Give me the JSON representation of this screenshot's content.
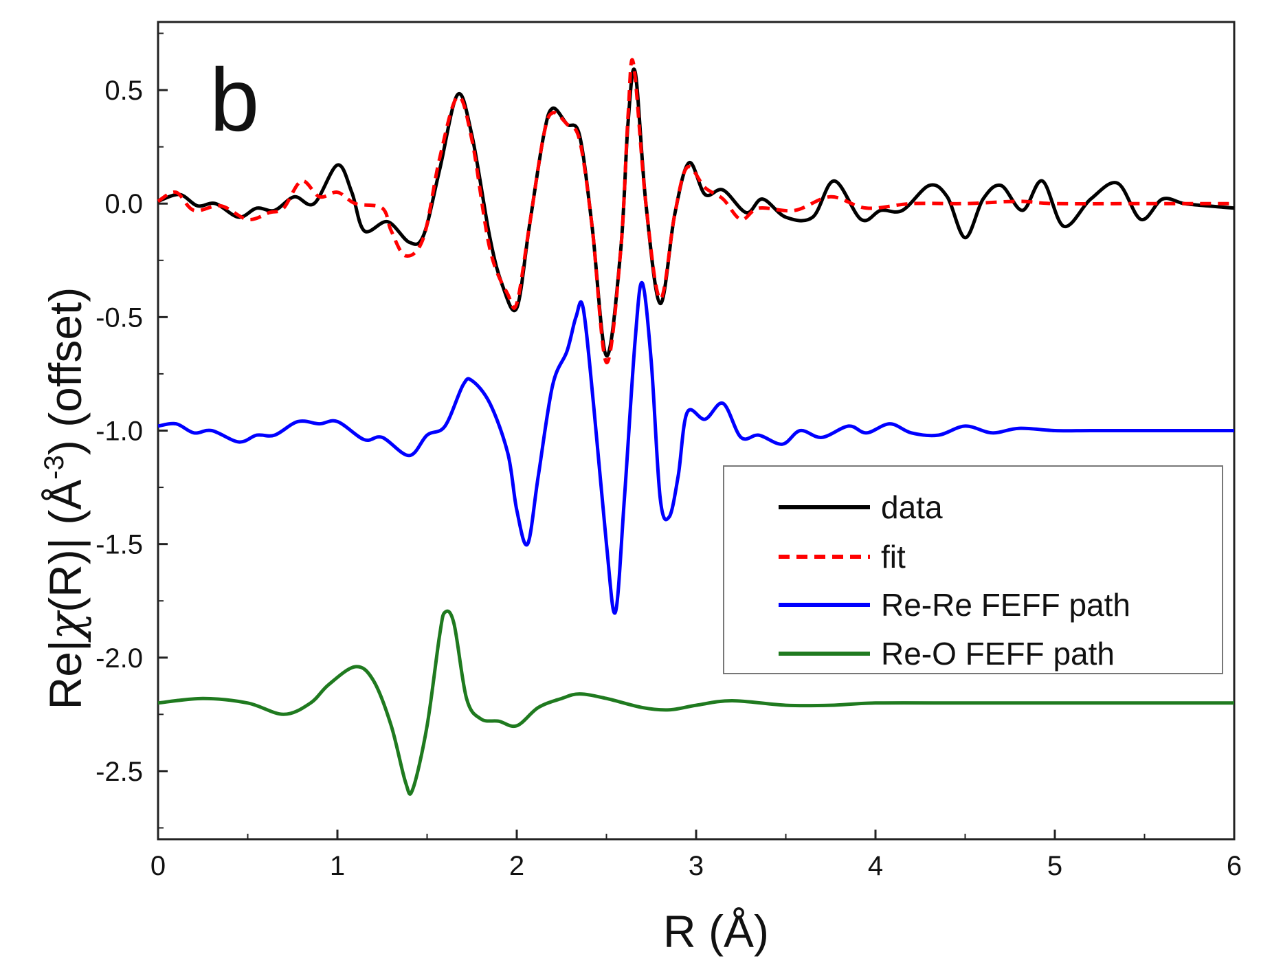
{
  "chart_data": {
    "type": "line",
    "panel_label": "b",
    "xlabel": "R (Å)",
    "ylabel_parts": {
      "pre": "Re|",
      "chi": "χ",
      "mid": "(R)| (",
      "unit": "Å",
      "exp": "-3",
      "post": ") (offset)"
    },
    "xlim": [
      0,
      6
    ],
    "ylim": [
      -2.8,
      0.8
    ],
    "x_ticks": [
      "0",
      "1",
      "2",
      "3",
      "4",
      "5",
      "6"
    ],
    "y_ticks": [
      "0.5",
      "0.0",
      "-0.5",
      "-1.0",
      "-1.5",
      "-2.0",
      "-2.5"
    ],
    "legend": {
      "position": "center-right",
      "entries": [
        "data",
        "fit",
        "Re-Re FEFF path",
        "Re-O FEFF path"
      ]
    },
    "series": [
      {
        "name": "data",
        "color": "#000000",
        "style": "solid",
        "points": [
          [
            0,
            0.01
          ],
          [
            0.12,
            0.04
          ],
          [
            0.22,
            -0.01
          ],
          [
            0.32,
            0.0
          ],
          [
            0.45,
            -0.06
          ],
          [
            0.55,
            -0.02
          ],
          [
            0.65,
            -0.03
          ],
          [
            0.76,
            0.03
          ],
          [
            0.87,
            0.0
          ],
          [
            1.0,
            0.17
          ],
          [
            1.08,
            0.05
          ],
          [
            1.15,
            -0.12
          ],
          [
            1.28,
            -0.08
          ],
          [
            1.4,
            -0.17
          ],
          [
            1.48,
            -0.14
          ],
          [
            1.57,
            0.15
          ],
          [
            1.67,
            0.48
          ],
          [
            1.75,
            0.3
          ],
          [
            1.85,
            -0.15
          ],
          [
            1.92,
            -0.36
          ],
          [
            2.0,
            -0.46
          ],
          [
            2.07,
            -0.1
          ],
          [
            2.15,
            0.3
          ],
          [
            2.2,
            0.42
          ],
          [
            2.28,
            0.35
          ],
          [
            2.35,
            0.3
          ],
          [
            2.42,
            -0.1
          ],
          [
            2.5,
            -0.67
          ],
          [
            2.58,
            -0.2
          ],
          [
            2.62,
            0.35
          ],
          [
            2.66,
            0.58
          ],
          [
            2.72,
            0.0
          ],
          [
            2.8,
            -0.44
          ],
          [
            2.88,
            -0.05
          ],
          [
            2.96,
            0.18
          ],
          [
            3.05,
            0.04
          ],
          [
            3.15,
            0.06
          ],
          [
            3.28,
            -0.04
          ],
          [
            3.37,
            0.02
          ],
          [
            3.5,
            -0.06
          ],
          [
            3.65,
            -0.06
          ],
          [
            3.77,
            0.1
          ],
          [
            3.92,
            -0.07
          ],
          [
            4.03,
            -0.03
          ],
          [
            4.15,
            -0.03
          ],
          [
            4.3,
            0.08
          ],
          [
            4.4,
            0.03
          ],
          [
            4.5,
            -0.15
          ],
          [
            4.6,
            0.02
          ],
          [
            4.7,
            0.08
          ],
          [
            4.82,
            -0.03
          ],
          [
            4.93,
            0.1
          ],
          [
            5.05,
            -0.1
          ],
          [
            5.2,
            0.02
          ],
          [
            5.35,
            0.09
          ],
          [
            5.48,
            -0.07
          ],
          [
            5.6,
            0.02
          ],
          [
            5.72,
            0.0
          ],
          [
            5.85,
            -0.01
          ],
          [
            6.0,
            -0.02
          ]
        ]
      },
      {
        "name": "fit",
        "color": "#ff0000",
        "style": "dashed",
        "points": [
          [
            0,
            0.01
          ],
          [
            0.1,
            0.05
          ],
          [
            0.2,
            -0.03
          ],
          [
            0.35,
            -0.01
          ],
          [
            0.5,
            -0.07
          ],
          [
            0.62,
            -0.04
          ],
          [
            0.7,
            -0.02
          ],
          [
            0.8,
            0.1
          ],
          [
            0.9,
            0.03
          ],
          [
            1.0,
            0.05
          ],
          [
            1.1,
            0.0
          ],
          [
            1.25,
            -0.02
          ],
          [
            1.3,
            -0.12
          ],
          [
            1.38,
            -0.23
          ],
          [
            1.48,
            -0.15
          ],
          [
            1.57,
            0.2
          ],
          [
            1.67,
            0.47
          ],
          [
            1.75,
            0.28
          ],
          [
            1.85,
            -0.2
          ],
          [
            1.95,
            -0.4
          ],
          [
            2.0,
            -0.44
          ],
          [
            2.07,
            -0.1
          ],
          [
            2.15,
            0.3
          ],
          [
            2.2,
            0.4
          ],
          [
            2.28,
            0.35
          ],
          [
            2.35,
            0.28
          ],
          [
            2.42,
            -0.1
          ],
          [
            2.5,
            -0.7
          ],
          [
            2.58,
            -0.2
          ],
          [
            2.62,
            0.38
          ],
          [
            2.65,
            0.62
          ],
          [
            2.72,
            0.0
          ],
          [
            2.8,
            -0.42
          ],
          [
            2.88,
            -0.05
          ],
          [
            2.95,
            0.16
          ],
          [
            3.05,
            0.07
          ],
          [
            3.15,
            0.02
          ],
          [
            3.25,
            -0.07
          ],
          [
            3.35,
            -0.02
          ],
          [
            3.55,
            -0.03
          ],
          [
            3.75,
            0.03
          ],
          [
            3.95,
            -0.02
          ],
          [
            4.2,
            0.0
          ],
          [
            4.5,
            0.0
          ],
          [
            4.8,
            0.01
          ],
          [
            5.0,
            0.0
          ],
          [
            5.5,
            0.0
          ],
          [
            6.0,
            0.0
          ]
        ]
      },
      {
        "name": "Re-Re FEFF path",
        "color": "#0000ff",
        "style": "solid",
        "points": [
          [
            0,
            -0.98
          ],
          [
            0.1,
            -0.97
          ],
          [
            0.2,
            -1.01
          ],
          [
            0.3,
            -1.0
          ],
          [
            0.45,
            -1.05
          ],
          [
            0.55,
            -1.02
          ],
          [
            0.65,
            -1.02
          ],
          [
            0.78,
            -0.96
          ],
          [
            0.9,
            -0.97
          ],
          [
            1.0,
            -0.96
          ],
          [
            1.15,
            -1.04
          ],
          [
            1.25,
            -1.03
          ],
          [
            1.4,
            -1.11
          ],
          [
            1.5,
            -1.02
          ],
          [
            1.6,
            -0.98
          ],
          [
            1.7,
            -0.8
          ],
          [
            1.75,
            -0.78
          ],
          [
            1.85,
            -0.88
          ],
          [
            1.95,
            -1.1
          ],
          [
            2.0,
            -1.35
          ],
          [
            2.06,
            -1.5
          ],
          [
            2.12,
            -1.2
          ],
          [
            2.2,
            -0.8
          ],
          [
            2.28,
            -0.65
          ],
          [
            2.33,
            -0.5
          ],
          [
            2.37,
            -0.46
          ],
          [
            2.43,
            -0.9
          ],
          [
            2.5,
            -1.5
          ],
          [
            2.55,
            -1.8
          ],
          [
            2.6,
            -1.3
          ],
          [
            2.66,
            -0.6
          ],
          [
            2.7,
            -0.35
          ],
          [
            2.75,
            -0.7
          ],
          [
            2.8,
            -1.3
          ],
          [
            2.85,
            -1.38
          ],
          [
            2.9,
            -1.2
          ],
          [
            2.95,
            -0.92
          ],
          [
            3.05,
            -0.95
          ],
          [
            3.15,
            -0.88
          ],
          [
            3.25,
            -1.03
          ],
          [
            3.35,
            -1.02
          ],
          [
            3.48,
            -1.06
          ],
          [
            3.58,
            -1.0
          ],
          [
            3.7,
            -1.03
          ],
          [
            3.85,
            -0.98
          ],
          [
            3.95,
            -1.01
          ],
          [
            4.08,
            -0.97
          ],
          [
            4.2,
            -1.01
          ],
          [
            4.35,
            -1.02
          ],
          [
            4.5,
            -0.98
          ],
          [
            4.65,
            -1.01
          ],
          [
            4.8,
            -0.99
          ],
          [
            5.0,
            -1.0
          ],
          [
            5.2,
            -1.0
          ],
          [
            5.5,
            -1.0
          ],
          [
            5.8,
            -1.0
          ],
          [
            6.0,
            -1.0
          ]
        ]
      },
      {
        "name": "Re-O FEFF path",
        "color": "#1f7a1f",
        "style": "solid",
        "points": [
          [
            0,
            -2.2
          ],
          [
            0.25,
            -2.18
          ],
          [
            0.5,
            -2.2
          ],
          [
            0.7,
            -2.25
          ],
          [
            0.85,
            -2.2
          ],
          [
            0.95,
            -2.12
          ],
          [
            1.1,
            -2.04
          ],
          [
            1.2,
            -2.1
          ],
          [
            1.3,
            -2.3
          ],
          [
            1.38,
            -2.55
          ],
          [
            1.42,
            -2.58
          ],
          [
            1.5,
            -2.3
          ],
          [
            1.57,
            -1.9
          ],
          [
            1.6,
            -1.8
          ],
          [
            1.65,
            -1.85
          ],
          [
            1.72,
            -2.18
          ],
          [
            1.8,
            -2.27
          ],
          [
            1.9,
            -2.28
          ],
          [
            2.0,
            -2.3
          ],
          [
            2.12,
            -2.22
          ],
          [
            2.25,
            -2.18
          ],
          [
            2.35,
            -2.16
          ],
          [
            2.5,
            -2.18
          ],
          [
            2.7,
            -2.22
          ],
          [
            2.85,
            -2.23
          ],
          [
            3.0,
            -2.21
          ],
          [
            3.2,
            -2.19
          ],
          [
            3.5,
            -2.21
          ],
          [
            3.75,
            -2.21
          ],
          [
            4.0,
            -2.2
          ],
          [
            4.5,
            -2.2
          ],
          [
            5.0,
            -2.2
          ],
          [
            5.5,
            -2.2
          ],
          [
            6.0,
            -2.2
          ]
        ]
      }
    ]
  }
}
